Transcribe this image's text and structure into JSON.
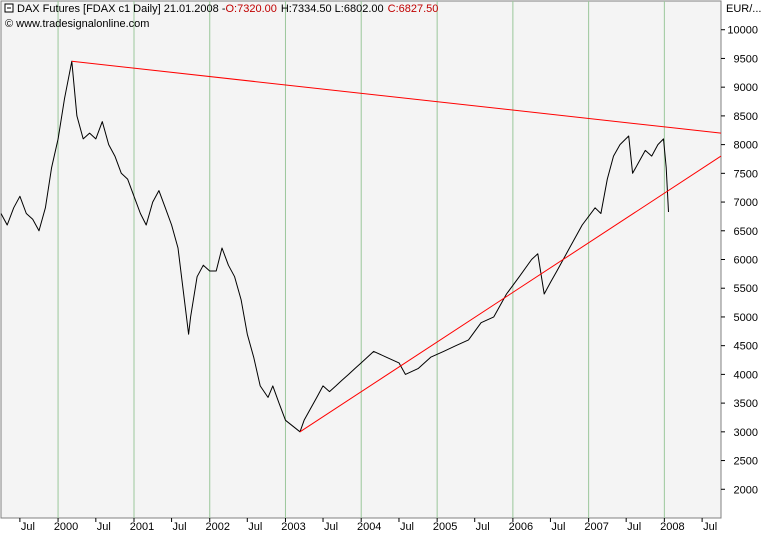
{
  "header": {
    "icon": "minus-box-icon",
    "instrument": "DAX Futures [FDAX c1  Daily] 21.01.2008 -",
    "open_label": "O:7320.00",
    "high_low": "H:7334.50 L:6802.00",
    "close_label": "C:6827.50",
    "source": "© www.tradesignalonline.com",
    "colors": {
      "text": "#000000",
      "highlight": "#c00000"
    }
  },
  "y_axis": {
    "label": "EUR/...",
    "ticks": [
      "10000",
      "9500",
      "9000",
      "8500",
      "8000",
      "7500",
      "7000",
      "6500",
      "6000",
      "5500",
      "5000",
      "4500",
      "4000",
      "3500",
      "3000",
      "2500",
      "2000"
    ]
  },
  "x_axis": {
    "ticks": [
      "Jul",
      "2000",
      "Jul",
      "2001",
      "Jul",
      "2002",
      "Jul",
      "2003",
      "Jul",
      "2004",
      "Jul",
      "2005",
      "Jul",
      "2006",
      "Jul",
      "2007",
      "Jul",
      "2008",
      "Jul"
    ]
  },
  "chart_data": {
    "type": "line",
    "title": "DAX Futures [FDAX c1  Daily]",
    "ylabel": "EUR/...",
    "ylim": [
      1500,
      10500
    ],
    "xlim": [
      "1999-04-01",
      "2008-09-30"
    ],
    "grid": true,
    "series": [
      {
        "color": "#000000",
        "points": [
          [
            "1999-04-01",
            6800
          ],
          [
            "1999-05-01",
            6600
          ],
          [
            "1999-06-01",
            6900
          ],
          [
            "1999-07-01",
            7100
          ],
          [
            "1999-08-01",
            6800
          ],
          [
            "1999-09-01",
            6700
          ],
          [
            "1999-10-01",
            6500
          ],
          [
            "1999-11-01",
            6900
          ],
          [
            "1999-12-01",
            7600
          ],
          [
            "2000-01-01",
            8100
          ],
          [
            "2000-02-01",
            8800
          ],
          [
            "2000-03-07",
            9450
          ],
          [
            "2000-04-01",
            8500
          ],
          [
            "2000-05-01",
            8100
          ],
          [
            "2000-06-01",
            8200
          ],
          [
            "2000-07-01",
            8100
          ],
          [
            "2000-08-01",
            8400
          ],
          [
            "2000-09-01",
            8000
          ],
          [
            "2000-10-01",
            7800
          ],
          [
            "2000-11-01",
            7500
          ],
          [
            "2000-12-01",
            7400
          ],
          [
            "2001-01-01",
            7100
          ],
          [
            "2001-02-01",
            6800
          ],
          [
            "2001-03-01",
            6600
          ],
          [
            "2001-04-01",
            7000
          ],
          [
            "2001-05-01",
            7200
          ],
          [
            "2001-06-01",
            6900
          ],
          [
            "2001-07-01",
            6600
          ],
          [
            "2001-08-01",
            6200
          ],
          [
            "2001-09-21",
            4700
          ],
          [
            "2001-10-01",
            5000
          ],
          [
            "2001-11-01",
            5700
          ],
          [
            "2001-12-01",
            5900
          ],
          [
            "2002-01-01",
            5800
          ],
          [
            "2002-02-01",
            5800
          ],
          [
            "2002-03-01",
            6200
          ],
          [
            "2002-04-01",
            5900
          ],
          [
            "2002-05-01",
            5700
          ],
          [
            "2002-06-01",
            5300
          ],
          [
            "2002-07-01",
            4700
          ],
          [
            "2002-08-01",
            4300
          ],
          [
            "2002-09-01",
            3800
          ],
          [
            "2002-10-09",
            3600
          ],
          [
            "2002-11-01",
            3800
          ],
          [
            "2002-12-01",
            3500
          ],
          [
            "2003-01-01",
            3200
          ],
          [
            "2003-03-12",
            3000
          ],
          [
            "2003-04-01",
            3200
          ],
          [
            "2003-05-01",
            3400
          ],
          [
            "2003-06-01",
            3600
          ],
          [
            "2003-07-01",
            3800
          ],
          [
            "2003-08-01",
            3700
          ],
          [
            "2003-09-01",
            3800
          ],
          [
            "2003-10-01",
            3900
          ],
          [
            "2003-11-01",
            4000
          ],
          [
            "2003-12-01",
            4100
          ],
          [
            "2004-01-01",
            4200
          ],
          [
            "2004-03-01",
            4400
          ],
          [
            "2004-05-01",
            4300
          ],
          [
            "2004-07-01",
            4200
          ],
          [
            "2004-08-01",
            4000
          ],
          [
            "2004-10-01",
            4100
          ],
          [
            "2004-12-01",
            4300
          ],
          [
            "2005-02-01",
            4400
          ],
          [
            "2005-04-01",
            4500
          ],
          [
            "2005-06-01",
            4600
          ],
          [
            "2005-08-01",
            4900
          ],
          [
            "2005-10-01",
            5000
          ],
          [
            "2005-12-01",
            5400
          ],
          [
            "2006-02-01",
            5700
          ],
          [
            "2006-04-01",
            6000
          ],
          [
            "2006-05-01",
            6100
          ],
          [
            "2006-06-01",
            5400
          ],
          [
            "2006-07-01",
            5600
          ],
          [
            "2006-08-01",
            5800
          ],
          [
            "2006-10-01",
            6200
          ],
          [
            "2006-12-01",
            6600
          ],
          [
            "2007-02-01",
            6900
          ],
          [
            "2007-03-01",
            6800
          ],
          [
            "2007-04-01",
            7400
          ],
          [
            "2007-05-01",
            7800
          ],
          [
            "2007-06-01",
            8000
          ],
          [
            "2007-07-13",
            8150
          ],
          [
            "2007-08-01",
            7500
          ],
          [
            "2007-09-01",
            7700
          ],
          [
            "2007-10-01",
            7900
          ],
          [
            "2007-11-01",
            7800
          ],
          [
            "2007-12-01",
            8000
          ],
          [
            "2007-12-28",
            8100
          ],
          [
            "2008-01-10",
            7600
          ],
          [
            "2008-01-21",
            6827.5
          ]
        ]
      },
      {
        "color": "#ff0000",
        "points": [
          [
            "2000-03-07",
            9450
          ],
          [
            "2008-09-30",
            8200
          ]
        ]
      },
      {
        "color": "#ff0000",
        "points": [
          [
            "2003-03-12",
            3000
          ],
          [
            "2008-09-30",
            7800
          ]
        ]
      }
    ]
  }
}
